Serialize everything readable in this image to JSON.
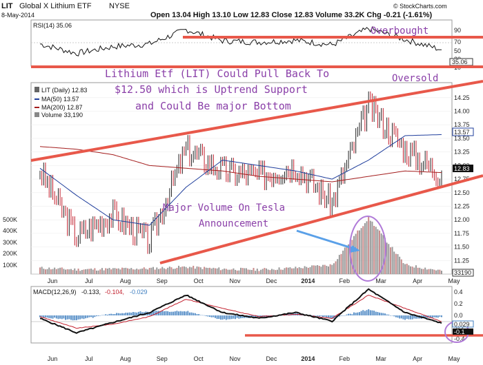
{
  "header": {
    "symbol": "LIT",
    "name": "Global X Lithium ETF",
    "exchange": "NYSE",
    "date": "8-May-2014",
    "quote": "Open 13.04  High 13.10  Low 12.83  Close 12.83  Volume 33.2K  Chg -0.21 (-1.61%)",
    "brand": "© StockCharts.com"
  },
  "rsi": {
    "label": "RSI(14) 35.06",
    "ticks": [
      10,
      30,
      50,
      70,
      90
    ],
    "last_label": "35.06",
    "overbought_text": "Overbought",
    "oversold_text": "Oversold"
  },
  "price": {
    "legend": [
      "LIT (Daily) 12.83",
      "MA(50) 13.57",
      "MA(200) 12.87",
      "Volume 33,190"
    ],
    "yticks": [
      "14.25",
      "14.00",
      "13.75",
      "13.50",
      "13.25",
      "13.00",
      "12.75",
      "12.50",
      "12.25",
      "12.00",
      "11.75",
      "11.50",
      "11.25",
      "11.00"
    ],
    "last_labels": [
      "13.57",
      "12.83"
    ],
    "volume_ticks": [
      "500K",
      "400K",
      "300K",
      "200K",
      "100K"
    ],
    "volume_last": "33190",
    "x_labels": [
      "Jun",
      "Jul",
      "Aug",
      "Sep",
      "Oct",
      "Nov",
      "Dec",
      "2014",
      "Feb",
      "Mar",
      "Apr",
      "May"
    ]
  },
  "annotations": {
    "line1": "Lithium Etf (LIT) Could Pull Back To",
    "line2": "$12.50 which is Uptrend Support",
    "line3": "and Could Be major Bottom",
    "volume1": "Major Volume On Tesla",
    "volume2": "Announcement"
  },
  "macd": {
    "label_prefix": "MACD(12,26,9)",
    "v1": "-0.133,",
    "v2": "-0.104,",
    "v3": "-0.029",
    "yticks": [
      "0.4",
      "0.2",
      "0.0",
      "-0.2",
      "-0.4"
    ],
    "last_labels": [
      "0.029",
      "-0.1"
    ]
  },
  "colors": {
    "price_up": "#222222",
    "price_down": "#c21d2b",
    "ma50": "#1d3c9b",
    "ma200": "#a31b1b",
    "trendline": "#e8584a",
    "annotation": "#8a3fa8",
    "arrow": "#5aa0e8",
    "macd_hist": "#3f7fc0"
  },
  "chart_data": [
    {
      "type": "line",
      "panel": "RSI(14)",
      "x": [
        "Jun",
        "Jul",
        "Aug",
        "Sep",
        "Oct",
        "Nov",
        "Dec",
        "2014",
        "Feb",
        "Mar",
        "Apr",
        "May"
      ],
      "series": [
        {
          "name": "RSI(14)",
          "values": [
            48,
            27,
            42,
            48,
            80,
            55,
            52,
            56,
            46,
            82,
            58,
            35.06
          ]
        }
      ],
      "ylim": [
        0,
        100
      ],
      "yticks": [
        10,
        30,
        50,
        70,
        90
      ]
    },
    {
      "type": "line",
      "panel": "price",
      "x": [
        "Jun",
        "Jul",
        "Aug",
        "Sep",
        "Oct",
        "Nov",
        "Dec",
        "2014",
        "Feb",
        "Mar",
        "Apr",
        "May"
      ],
      "series": [
        {
          "name": "LIT (Daily)",
          "values": [
            12.9,
            11.7,
            12.1,
            11.6,
            13.3,
            12.9,
            12.8,
            13.0,
            12.3,
            14.1,
            13.3,
            12.83
          ]
        },
        {
          "name": "MA(50)",
          "values": [
            12.95,
            12.45,
            12.0,
            11.9,
            12.6,
            13.1,
            13.0,
            12.9,
            12.75,
            13.1,
            13.55,
            13.57
          ]
        },
        {
          "name": "MA(200)",
          "values": [
            13.35,
            13.3,
            13.2,
            13.0,
            12.95,
            12.9,
            12.8,
            12.75,
            12.7,
            12.8,
            12.9,
            12.87
          ]
        }
      ],
      "ylim": [
        11.0,
        14.4
      ]
    },
    {
      "type": "bar",
      "panel": "Volume",
      "categories": [
        "Jun",
        "Jul",
        "Aug",
        "Sep",
        "Oct",
        "Nov",
        "Dec",
        "2014",
        "Feb",
        "Mar",
        "Apr",
        "May"
      ],
      "series": [
        {
          "name": "Volume",
          "values": [
            60000,
            45000,
            50000,
            55000,
            70000,
            50000,
            45000,
            60000,
            90000,
            550000,
            90000,
            33190
          ]
        }
      ]
    },
    {
      "type": "line",
      "panel": "MACD(12,26,9)",
      "x": [
        "Jun",
        "Jul",
        "Aug",
        "Sep",
        "Oct",
        "Nov",
        "Dec",
        "2014",
        "Feb",
        "Mar",
        "Apr",
        "May"
      ],
      "series": [
        {
          "name": "MACD",
          "values": [
            -0.05,
            -0.3,
            -0.12,
            0.05,
            0.35,
            0.05,
            -0.05,
            0.05,
            -0.1,
            0.45,
            0.05,
            -0.133
          ]
        },
        {
          "name": "Signal",
          "values": [
            -0.02,
            -0.22,
            -0.15,
            -0.02,
            0.28,
            0.12,
            -0.02,
            0.02,
            -0.05,
            0.35,
            0.12,
            -0.104
          ]
        }
      ],
      "ylim": [
        -0.45,
        0.45
      ]
    }
  ]
}
